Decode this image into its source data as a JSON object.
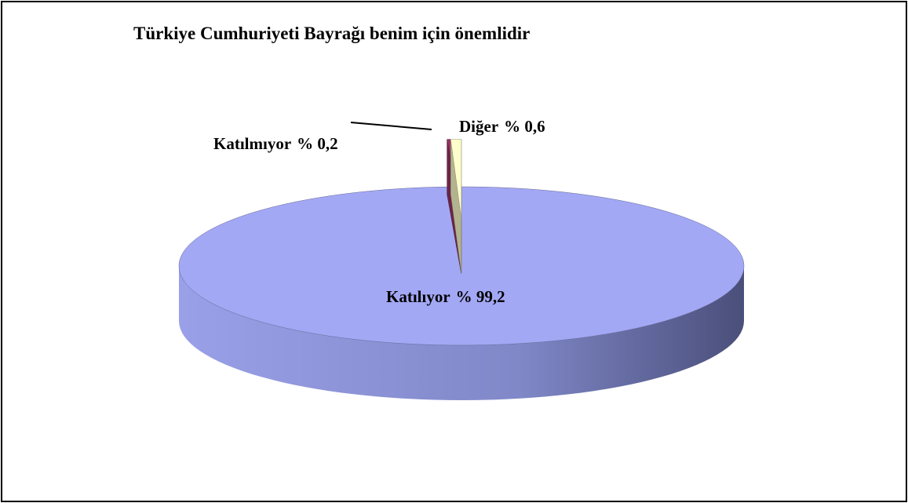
{
  "chart_data": {
    "type": "pie",
    "title": "Türkiye Cumhuriyeti Bayrağı benim için önemlidir",
    "categories": [
      "Katılıyor",
      "Katılmıyor",
      "Diğer"
    ],
    "values": [
      99.2,
      0.2,
      0.6
    ],
    "value_labels": [
      "% 99,2",
      "% 0,2",
      "% 0,6"
    ],
    "colors": [
      "#a3a8f5",
      "#993366",
      "#ffffcc"
    ]
  }
}
